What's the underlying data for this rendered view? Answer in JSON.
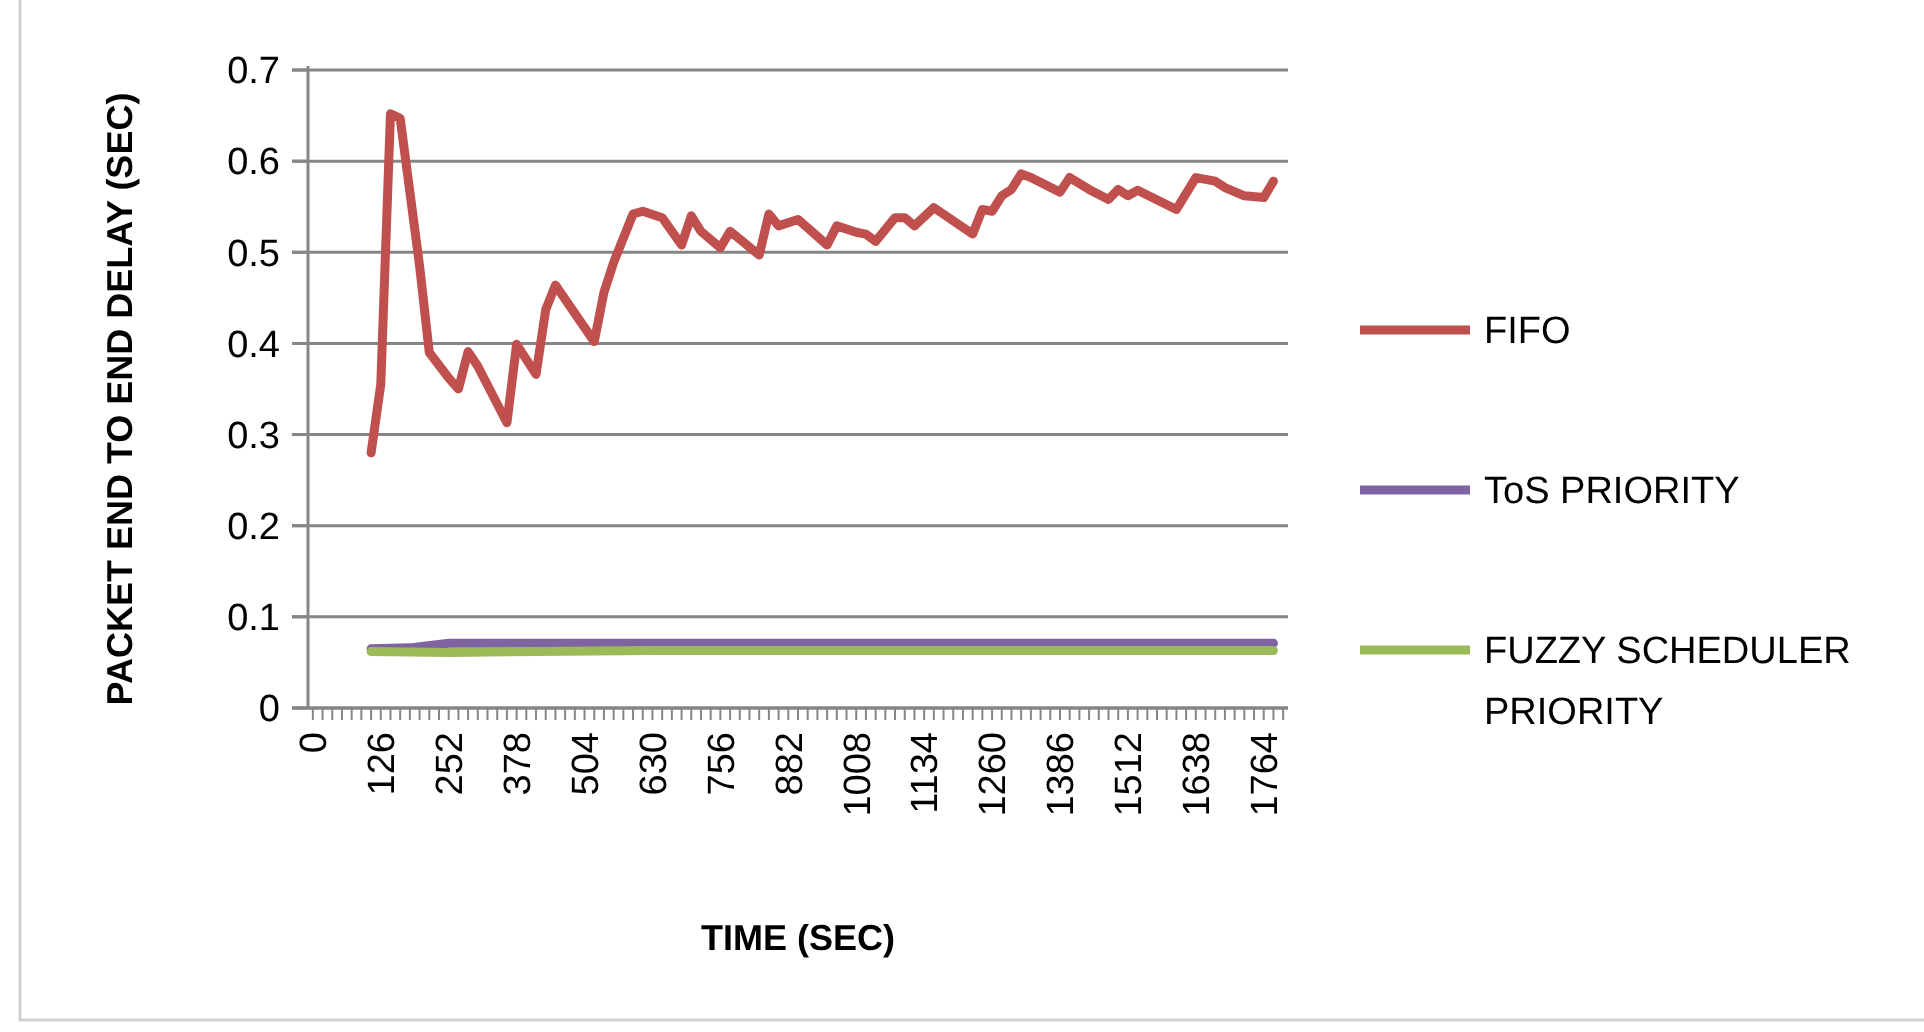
{
  "chart_data": {
    "type": "line",
    "xlabel": "TIME (SEC)",
    "ylabel": "PACKET END TO END DELAY (SEC)",
    "xlim": [
      -9,
      1809
    ],
    "ylim": [
      0,
      0.7
    ],
    "yticks": [
      0,
      0.1,
      0.2,
      0.3,
      0.4,
      0.5,
      0.6,
      0.7
    ],
    "xticks": [
      0,
      {
        "value": 18,
        "label": null
      },
      {
        "value": 36,
        "label": null
      },
      {
        "value": 54,
        "label": null
      },
      {
        "value": 72,
        "label": null
      },
      {
        "value": 90,
        "label": null
      },
      {
        "value": 108,
        "label": null
      },
      126,
      {
        "value": 144,
        "label": null
      },
      {
        "value": 162,
        "label": null
      },
      {
        "value": 180,
        "label": null
      },
      {
        "value": 198,
        "label": null
      },
      {
        "value": 216,
        "label": null
      },
      {
        "value": 234,
        "label": null
      },
      252,
      {
        "value": 270,
        "label": null
      },
      {
        "value": 288,
        "label": null
      },
      {
        "value": 306,
        "label": null
      },
      {
        "value": 324,
        "label": null
      },
      {
        "value": 342,
        "label": null
      },
      {
        "value": 360,
        "label": null
      },
      378,
      {
        "value": 396,
        "label": null
      },
      {
        "value": 414,
        "label": null
      },
      {
        "value": 432,
        "label": null
      },
      {
        "value": 450,
        "label": null
      },
      {
        "value": 468,
        "label": null
      },
      {
        "value": 486,
        "label": null
      },
      504,
      {
        "value": 522,
        "label": null
      },
      {
        "value": 540,
        "label": null
      },
      {
        "value": 558,
        "label": null
      },
      {
        "value": 576,
        "label": null
      },
      {
        "value": 594,
        "label": null
      },
      {
        "value": 612,
        "label": null
      },
      630,
      {
        "value": 648,
        "label": null
      },
      {
        "value": 666,
        "label": null
      },
      {
        "value": 684,
        "label": null
      },
      {
        "value": 702,
        "label": null
      },
      {
        "value": 720,
        "label": null
      },
      {
        "value": 738,
        "label": null
      },
      756,
      {
        "value": 774,
        "label": null
      },
      {
        "value": 792,
        "label": null
      },
      {
        "value": 810,
        "label": null
      },
      {
        "value": 828,
        "label": null
      },
      {
        "value": 846,
        "label": null
      },
      {
        "value": 864,
        "label": null
      },
      882,
      {
        "value": 900,
        "label": null
      },
      {
        "value": 918,
        "label": null
      },
      {
        "value": 936,
        "label": null
      },
      {
        "value": 954,
        "label": null
      },
      {
        "value": 972,
        "label": null
      },
      {
        "value": 990,
        "label": null
      },
      1008,
      {
        "value": 1026,
        "label": null
      },
      {
        "value": 1044,
        "label": null
      },
      {
        "value": 1062,
        "label": null
      },
      {
        "value": 1080,
        "label": null
      },
      {
        "value": 1098,
        "label": null
      },
      {
        "value": 1116,
        "label": null
      },
      1134,
      {
        "value": 1152,
        "label": null
      },
      {
        "value": 1170,
        "label": null
      },
      {
        "value": 1188,
        "label": null
      },
      {
        "value": 1206,
        "label": null
      },
      {
        "value": 1224,
        "label": null
      },
      {
        "value": 1242,
        "label": null
      },
      1260,
      {
        "value": 1278,
        "label": null
      },
      {
        "value": 1296,
        "label": null
      },
      {
        "value": 1314,
        "label": null
      },
      {
        "value": 1332,
        "label": null
      },
      {
        "value": 1350,
        "label": null
      },
      {
        "value": 1368,
        "label": null
      },
      1386,
      {
        "value": 1404,
        "label": null
      },
      {
        "value": 1422,
        "label": null
      },
      {
        "value": 1440,
        "label": null
      },
      {
        "value": 1458,
        "label": null
      },
      {
        "value": 1476,
        "label": null
      },
      {
        "value": 1494,
        "label": null
      },
      1512,
      {
        "value": 1530,
        "label": null
      },
      {
        "value": 1548,
        "label": null
      },
      {
        "value": 1566,
        "label": null
      },
      {
        "value": 1584,
        "label": null
      },
      {
        "value": 1602,
        "label": null
      },
      {
        "value": 1620,
        "label": null
      },
      1638,
      {
        "value": 1656,
        "label": null
      },
      {
        "value": 1674,
        "label": null
      },
      {
        "value": 1692,
        "label": null
      },
      {
        "value": 1710,
        "label": null
      },
      {
        "value": 1728,
        "label": null
      },
      {
        "value": 1746,
        "label": null
      },
      1764,
      {
        "value": 1782,
        "label": null
      },
      {
        "value": 1800,
        "label": null
      }
    ],
    "grid": "y",
    "legend": "right",
    "marker": "none",
    "line_style": "solid",
    "series": [
      {
        "name": "FIFO",
        "color": "#c0504d",
        "x": [
          108,
          126,
          144,
          162,
          198,
          216,
          252,
          270,
          288,
          306,
          360,
          378,
          414,
          432,
          450,
          522,
          540,
          558,
          594,
          612,
          648,
          684,
          702,
          720,
          756,
          774,
          828,
          846,
          864,
          900,
          954,
          972,
          1008,
          1026,
          1044,
          1080,
          1098,
          1116,
          1152,
          1224,
          1242,
          1260,
          1278,
          1296,
          1314,
          1332,
          1386,
          1404,
          1440,
          1476,
          1494,
          1512,
          1530,
          1602,
          1638,
          1674,
          1692,
          1728,
          1764,
          1782
        ],
        "values": [
          0.28,
          0.355,
          0.652,
          0.647,
          0.485,
          0.39,
          0.362,
          0.35,
          0.391,
          0.375,
          0.313,
          0.399,
          0.366,
          0.437,
          0.464,
          0.402,
          0.456,
          0.489,
          0.542,
          0.545,
          0.538,
          0.508,
          0.54,
          0.523,
          0.505,
          0.523,
          0.497,
          0.542,
          0.529,
          0.536,
          0.508,
          0.529,
          0.522,
          0.52,
          0.512,
          0.538,
          0.538,
          0.529,
          0.549,
          0.52,
          0.547,
          0.545,
          0.562,
          0.569,
          0.586,
          0.582,
          0.566,
          0.582,
          0.569,
          0.558,
          0.569,
          0.562,
          0.568,
          0.547,
          0.582,
          0.578,
          0.571,
          0.562,
          0.56,
          0.578
        ]
      },
      {
        "name": "ToS PRIORITY",
        "color": "#8064a2",
        "x": [
          108,
          180,
          252,
          504,
          1008,
          1782
        ],
        "values": [
          0.065,
          0.066,
          0.071,
          0.071,
          0.071,
          0.071
        ]
      },
      {
        "name": "FUZZY SCHEDULER PRIORITY",
        "color": "#9bbb59",
        "x": [
          108,
          252,
          630,
          1782
        ],
        "values": [
          0.062,
          0.061,
          0.063,
          0.063
        ]
      }
    ]
  }
}
